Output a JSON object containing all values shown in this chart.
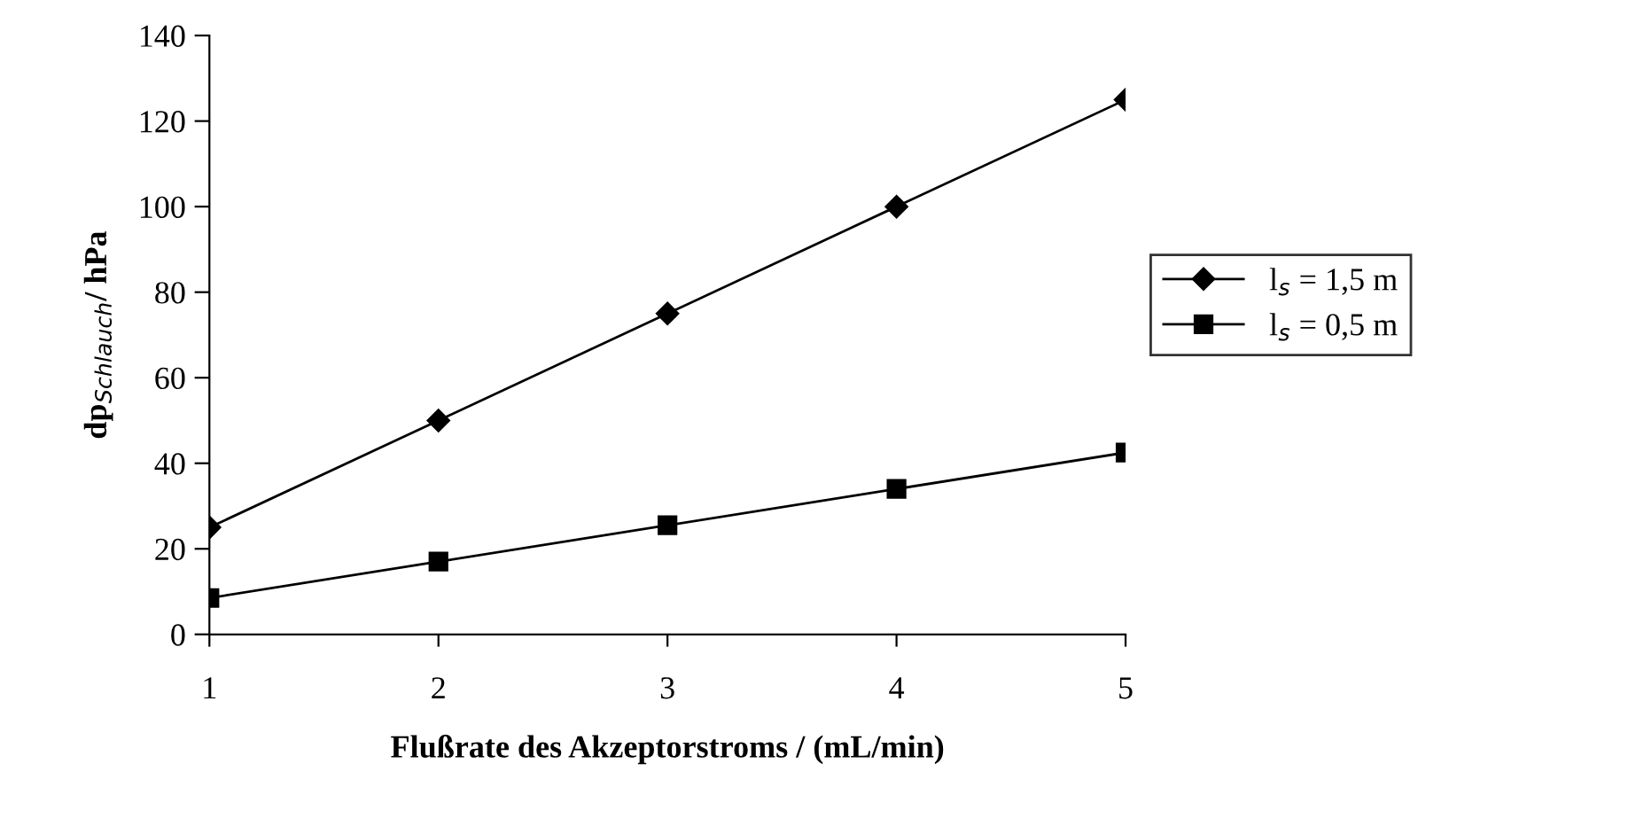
{
  "chart_data": {
    "type": "line",
    "xlabel": "Flußrate des Akzeptorstroms / (mL/min)",
    "ylabel": "dp$_{Schlauch}$/ hPa",
    "x": [
      1,
      2,
      3,
      4,
      5
    ],
    "series": [
      {
        "name": "l$_{s}$ = 1,5 m",
        "color": "#000000",
        "marker": "diamond",
        "values": [
          25,
          50,
          75,
          100,
          125
        ]
      },
      {
        "name": "l$_{s}$ = 0,5 m",
        "color": "#000000",
        "marker": "square",
        "values": [
          8.5,
          17,
          25.5,
          34,
          42.5
        ]
      }
    ],
    "xlim": [
      1,
      5
    ],
    "xticks": [
      1,
      2,
      3,
      4,
      5
    ],
    "ylim": [
      0,
      140
    ],
    "yticks": [
      0,
      20,
      40,
      60,
      80,
      100,
      120,
      140
    ],
    "grid": false,
    "legend": "right",
    "line_style": "solid"
  }
}
